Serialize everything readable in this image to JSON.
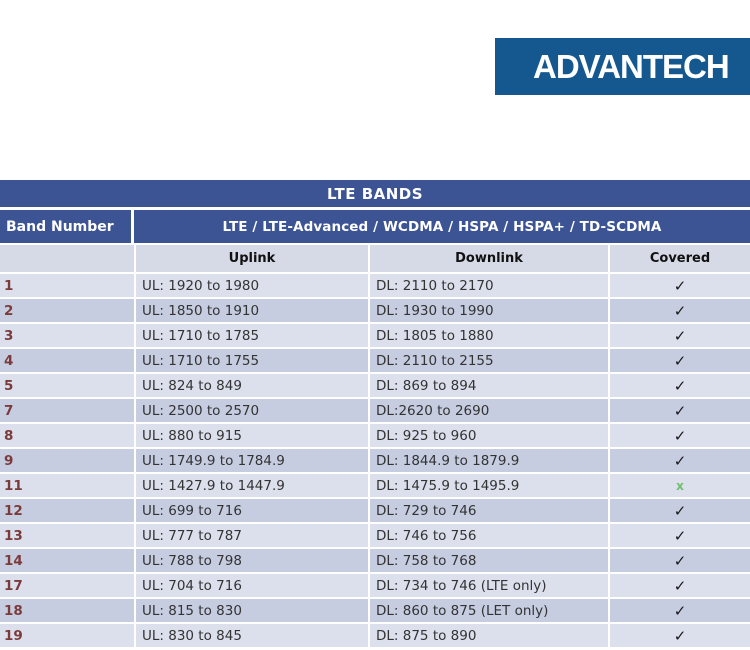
{
  "logo": {
    "text": "ADVANTECH",
    "bg_color": "#15578F",
    "text_color": "#ffffff"
  },
  "table": {
    "title": "LTE BANDS",
    "header": {
      "band_column": "Band Number",
      "tech_column": "LTE / LTE-Advanced / WCDMA / HSPA / HSPA+ / TD-SCDMA"
    },
    "subheader": {
      "uplink": "Uplink",
      "downlink": "Downlink",
      "covered": "Covered"
    },
    "colors": {
      "header_bg": "#3D5494",
      "header_text": "#ffffff",
      "row_light": "#DCE0EC",
      "row_dark": "#C7CDE1",
      "subheader_bg": "#D6DAE7",
      "body_text": "#333333",
      "band_number_text": "#7B3B3B",
      "check_color": "#1a1a1a",
      "cross_color": "#6EC06A"
    },
    "check_glyph": "✓",
    "cross_glyph": "x",
    "rows": [
      {
        "band": "1",
        "uplink": "UL: 1920 to 1980",
        "downlink": "DL: 2110 to 2170",
        "covered": "✓"
      },
      {
        "band": "2",
        "uplink": "UL: 1850 to 1910",
        "downlink": "DL: 1930 to 1990",
        "covered": "✓"
      },
      {
        "band": "3",
        "uplink": "UL: 1710 to 1785",
        "downlink": "DL: 1805 to 1880",
        "covered": "✓"
      },
      {
        "band": "4",
        "uplink": "UL: 1710 to 1755",
        "downlink": "DL: 2110 to 2155",
        "covered": "✓"
      },
      {
        "band": "5",
        "uplink": "UL: 824 to 849",
        "downlink": "DL: 869 to 894",
        "covered": "✓"
      },
      {
        "band": "7",
        "uplink": "UL: 2500 to 2570",
        "downlink": "DL:2620 to 2690",
        "covered": "✓"
      },
      {
        "band": "8",
        "uplink": "UL: 880 to 915",
        "downlink": "DL: 925 to 960",
        "covered": "✓"
      },
      {
        "band": "9",
        "uplink": "UL: 1749.9 to 1784.9",
        "downlink": "DL: 1844.9 to 1879.9",
        "covered": "✓"
      },
      {
        "band": "11",
        "uplink": "UL: 1427.9 to 1447.9",
        "downlink": "DL: 1475.9 to 1495.9",
        "covered": "x"
      },
      {
        "band": "12",
        "uplink": "UL: 699 to 716",
        "downlink": "DL: 729 to 746",
        "covered": "✓"
      },
      {
        "band": "13",
        "uplink": "UL: 777 to 787",
        "downlink": "DL: 746 to 756",
        "covered": "✓"
      },
      {
        "band": "14",
        "uplink": "UL: 788 to 798",
        "downlink": "DL: 758 to 768",
        "covered": "✓"
      },
      {
        "band": "17",
        "uplink": "UL: 704 to 716",
        "downlink": "DL: 734 to 746 (LTE only)",
        "covered": "✓"
      },
      {
        "band": "18",
        "uplink": "UL: 815 to 830",
        "downlink": "DL: 860 to 875 (LET only)",
        "covered": "✓"
      },
      {
        "band": "19",
        "uplink": "UL: 830 to 845",
        "downlink": "DL: 875 to 890",
        "covered": "✓"
      }
    ]
  }
}
